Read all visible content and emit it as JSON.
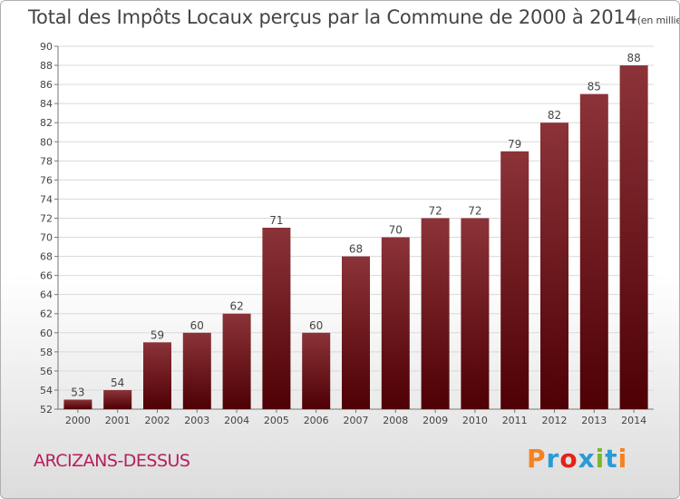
{
  "title": "Total des Impôts Locaux perçus par la Commune de 2000 à 2014",
  "unit": "(en milliers d'€)",
  "commune": "ARCIZANS-DESSUS",
  "logo": {
    "letters": [
      "P",
      "r",
      "o",
      "x",
      "i",
      "t",
      "i"
    ],
    "colors": [
      "#f58220",
      "#2a9bd6",
      "#e2231a",
      "#2a9bd6",
      "#7ab829",
      "#2a9bd6",
      "#f58220"
    ]
  },
  "colors": {
    "bar_top": "#8b3338",
    "bar_bottom": "#4e0005",
    "grid": "#d9d9d9"
  },
  "chart_data": {
    "type": "bar",
    "categories": [
      "2000",
      "2001",
      "2002",
      "2003",
      "2004",
      "2005",
      "2006",
      "2007",
      "2008",
      "2009",
      "2010",
      "2011",
      "2012",
      "2013",
      "2014"
    ],
    "values": [
      53,
      54,
      59,
      60,
      62,
      71,
      60,
      68,
      70,
      72,
      72,
      79,
      82,
      85,
      88
    ],
    "data_labels": [
      "53",
      "54",
      "59",
      "60",
      "62",
      "71",
      "60",
      "68",
      "70",
      "72",
      "72",
      "79",
      "82",
      "85",
      "88"
    ],
    "ylim": [
      52,
      90
    ],
    "yticks": [
      52,
      54,
      56,
      58,
      60,
      62,
      64,
      66,
      68,
      70,
      72,
      74,
      76,
      78,
      80,
      82,
      84,
      86,
      88,
      90
    ],
    "grid": true,
    "xlabel": "",
    "ylabel": ""
  }
}
